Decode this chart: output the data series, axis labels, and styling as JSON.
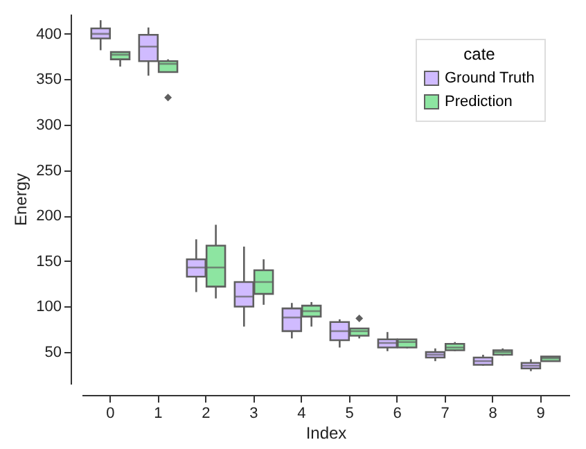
{
  "chart_data": {
    "type": "box",
    "xlabel": "Index",
    "ylabel": "Energy",
    "legend_title": "cate",
    "legend": "top right",
    "grid": false,
    "categories": [
      "0",
      "1",
      "2",
      "3",
      "4",
      "5",
      "6",
      "7",
      "8",
      "9"
    ],
    "ylim": [
      15,
      422
    ],
    "yticks": [
      50,
      100,
      150,
      200,
      250,
      300,
      350,
      400
    ],
    "series": [
      {
        "name": "Ground Truth",
        "color": "#d0bbff",
        "boxes": [
          {
            "low": 382,
            "q1": 395,
            "median": 400,
            "q3": 406,
            "high": 415
          },
          {
            "low": 354,
            "q1": 370,
            "median": 386,
            "q3": 399,
            "high": 407
          },
          {
            "low": 116,
            "q1": 133,
            "median": 143,
            "q3": 152,
            "high": 174
          },
          {
            "low": 78,
            "q1": 100,
            "median": 111,
            "q3": 127,
            "high": 166
          },
          {
            "low": 65,
            "q1": 73,
            "median": 88,
            "q3": 98,
            "high": 104
          },
          {
            "low": 55,
            "q1": 63,
            "median": 73,
            "q3": 83,
            "high": 86
          },
          {
            "low": 51,
            "q1": 55,
            "median": 60,
            "q3": 64,
            "high": 72
          },
          {
            "low": 40,
            "q1": 44,
            "median": 47,
            "q3": 50,
            "high": 54
          },
          {
            "low": 35,
            "q1": 36,
            "median": 40,
            "q3": 44,
            "high": 47
          },
          {
            "low": 29,
            "q1": 32,
            "median": 35,
            "q3": 38,
            "high": 42
          }
        ]
      },
      {
        "name": "Prediction",
        "color": "#8de5a1",
        "boxes": [
          {
            "low": 364,
            "q1": 372,
            "median": 377,
            "q3": 380,
            "high": 380
          },
          {
            "low": 358,
            "q1": 358,
            "median": 367,
            "q3": 370,
            "high": 372,
            "outliers": [
              330
            ]
          },
          {
            "low": 109,
            "q1": 122,
            "median": 143,
            "q3": 167,
            "high": 190
          },
          {
            "low": 102,
            "q1": 114,
            "median": 127,
            "q3": 140,
            "high": 152
          },
          {
            "low": 78,
            "q1": 89,
            "median": 95,
            "q3": 101,
            "high": 105
          },
          {
            "low": 65,
            "q1": 68,
            "median": 73,
            "q3": 76,
            "high": 76,
            "outliers": [
              87
            ]
          },
          {
            "low": 54,
            "q1": 55,
            "median": 61,
            "q3": 64,
            "high": 64
          },
          {
            "low": 51,
            "q1": 52,
            "median": 55,
            "q3": 59,
            "high": 61
          },
          {
            "low": 46,
            "q1": 47,
            "median": 50,
            "q3": 52,
            "high": 54
          },
          {
            "low": 40,
            "q1": 40,
            "median": 43,
            "q3": 45,
            "high": 45
          }
        ]
      }
    ]
  }
}
